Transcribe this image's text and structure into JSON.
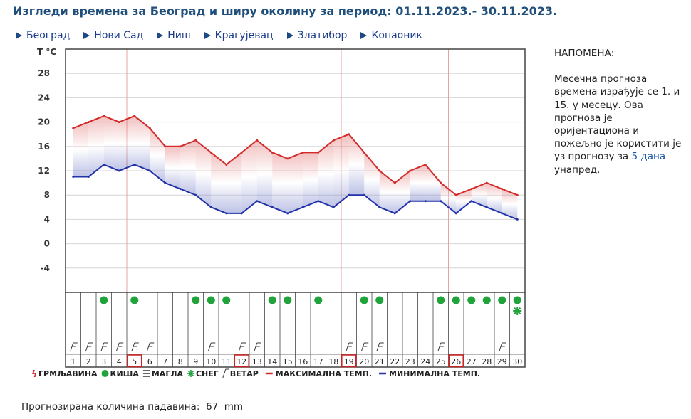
{
  "header": {
    "title": "Изгледи времена за Београд и ширу околину за период: 01.11.2023.- 30.11.2023."
  },
  "nav": {
    "items": [
      {
        "label": "Београд"
      },
      {
        "label": "Нови Сад"
      },
      {
        "label": "Ниш"
      },
      {
        "label": "Крагујевац"
      },
      {
        "label": "Златибор"
      },
      {
        "label": "Копаоник"
      }
    ]
  },
  "note": {
    "heading": "НАПОМЕНА:",
    "text_before": "Месечна прогноза времена израђује се 1. и 15. у месецу. Ова прогноза је оријентациона и пожељно је користити је уз прогнозу за ",
    "link": "5 дана",
    "text_after": " унапред."
  },
  "precip": {
    "label": "Прогнозирана количина падавина:",
    "value": "67",
    "unit": "mm"
  },
  "colors": {
    "max_temp": "#d42a2a",
    "min_temp": "#2233aa",
    "rain": "#1fa33a",
    "snow": "#1fa33a",
    "storm": "#d42a2a",
    "weekend_line": "#e8a0a0",
    "highlight_box": "#cc2222",
    "title": "#1f4f7a"
  },
  "legend": [
    {
      "icon": "storm-icon",
      "label": "ГРМЉАВИНА"
    },
    {
      "icon": "rain-icon",
      "label": "КИША"
    },
    {
      "icon": "fog-icon",
      "label": "МАГЛА"
    },
    {
      "icon": "snow-icon",
      "label": "СНЕГ"
    },
    {
      "icon": "wind-icon",
      "label": "ВЕТАР"
    },
    {
      "icon": "max-temp-line-icon",
      "label": "МАКСИМАЛНА ТЕМП."
    },
    {
      "icon": "min-temp-line-icon",
      "label": "МИНИМАЛНА ТЕМП."
    }
  ],
  "chart_data": {
    "type": "area",
    "ylabel": "T °C",
    "ylim": [
      -8,
      32
    ],
    "yticks": [
      28,
      24,
      20,
      16,
      12,
      8,
      4,
      0,
      -4
    ],
    "grid": true,
    "days": [
      1,
      2,
      3,
      4,
      5,
      6,
      7,
      8,
      9,
      10,
      11,
      12,
      13,
      14,
      15,
      16,
      17,
      18,
      19,
      20,
      21,
      22,
      23,
      24,
      25,
      26,
      27,
      28,
      29,
      30
    ],
    "highlighted_days": [
      5,
      12,
      19,
      26
    ],
    "series": [
      {
        "values": [
          19,
          20,
          21,
          20,
          21,
          19,
          16,
          16,
          17,
          15,
          13,
          15,
          17,
          15,
          14,
          15,
          15,
          17,
          18,
          15,
          12,
          10,
          12,
          13,
          10,
          8,
          9,
          10,
          9,
          8
        ]
      },
      {
        "values": [
          11,
          11,
          13,
          12,
          13,
          12,
          10,
          9,
          8,
          6,
          5,
          5,
          7,
          6,
          5,
          6,
          7,
          6,
          8,
          8,
          6,
          5,
          7,
          7,
          7,
          5,
          7,
          6,
          5,
          4
        ]
      }
    ],
    "rain_days": [
      3,
      5,
      9,
      10,
      11,
      14,
      15,
      17,
      20,
      21,
      25,
      26,
      27,
      28,
      29,
      30
    ],
    "snow_days": [
      30
    ],
    "wind_days": [
      1,
      2,
      3,
      4,
      5,
      6,
      10,
      12,
      13,
      19,
      20,
      21,
      25,
      29
    ]
  }
}
